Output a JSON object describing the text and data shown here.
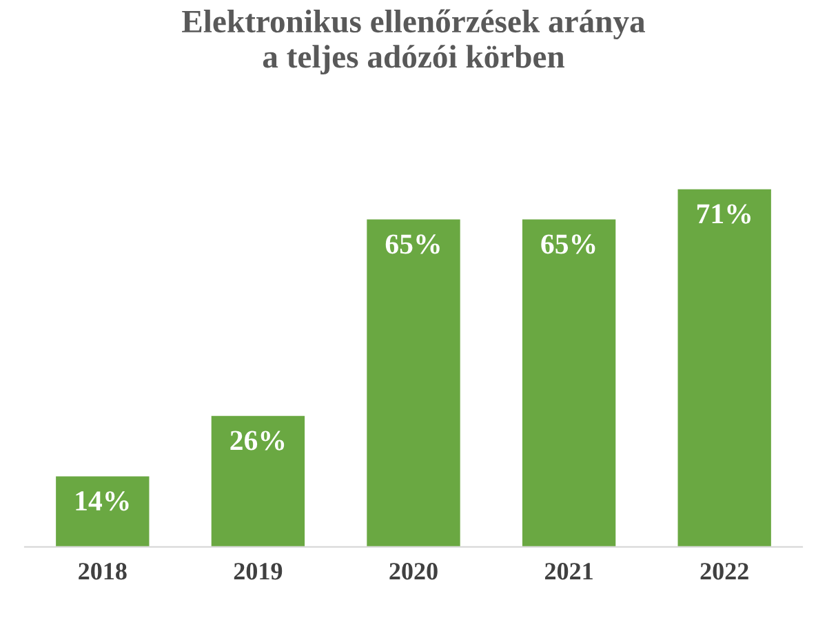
{
  "chart_data": {
    "type": "bar",
    "title": "Elektronikus ellenőrzések aránya\na teljes adózói körben",
    "categories": [
      "2018",
      "2019",
      "2020",
      "2021",
      "2022"
    ],
    "values": [
      14,
      26,
      65,
      65,
      71
    ],
    "color": "#6aa842",
    "value_labels": [
      "14%",
      "26%",
      "65%",
      "65%",
      "71%"
    ],
    "grid": false,
    "legend": false
  }
}
